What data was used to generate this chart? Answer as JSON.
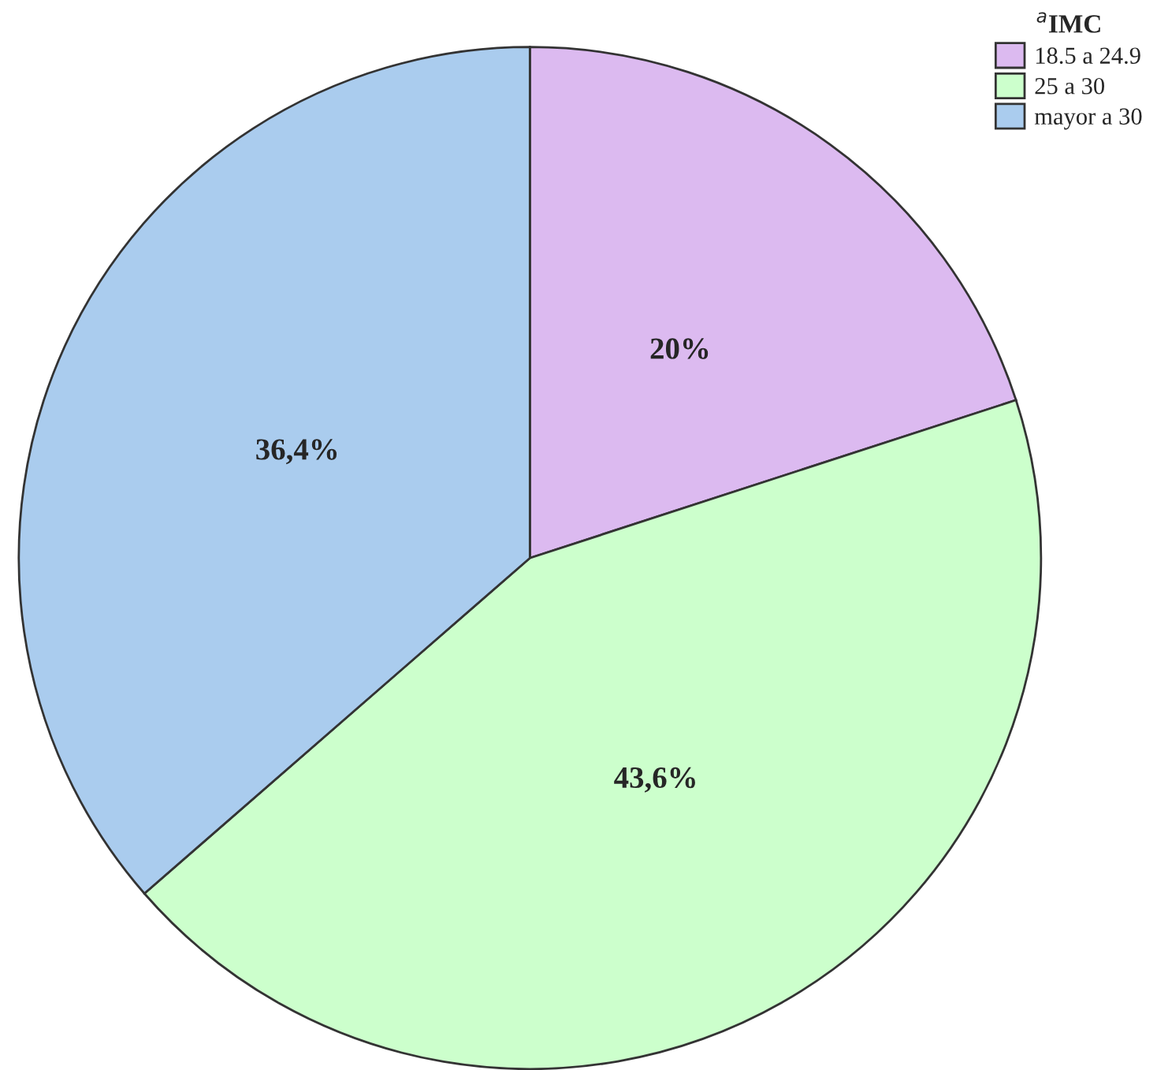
{
  "chart_data": {
    "type": "pie",
    "legend_title": "$^{a}$IMC",
    "legend": "top right",
    "categories": [
      "18.5 a 24.9",
      "25 a 30",
      "mayor a 30"
    ],
    "values": [
      20,
      43.6,
      36.4
    ],
    "value_labels": [
      "20%",
      "43,6%",
      "36,4%"
    ],
    "colors": [
      "#dcbaf0",
      "#ccffcc",
      "#aaccee"
    ]
  }
}
